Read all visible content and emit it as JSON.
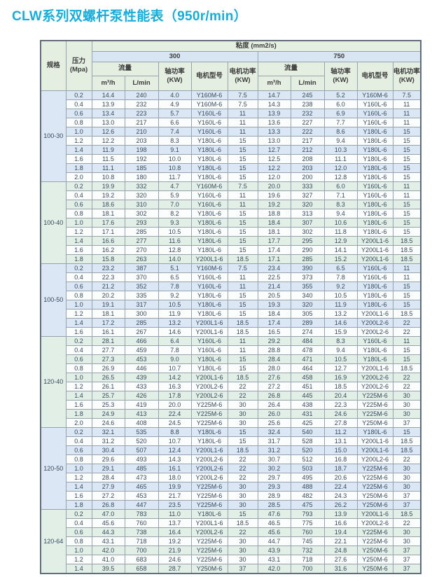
{
  "title": "CLW系列双螺杆泵性能表（950r/min）",
  "colors": {
    "title": "#18acd8",
    "header_green": "#e4eee1",
    "header_blue": "#d8e5f2",
    "row_tint_blue": "#dbe7f4",
    "row_tint_green": "#e2efe7",
    "row_plain": "#fbfdfc",
    "border_inner": "#96a3ac",
    "border_outer": "#5f6e79",
    "text": "#37495a"
  },
  "table": {
    "headers": {
      "spec": "规格",
      "pressure_line1": "压力",
      "pressure_line2": "(Mpa)",
      "viscosity": "粘度 (mm2/s)",
      "visc_300": "300",
      "visc_750": "750",
      "flow": "流量",
      "flow_m3h": "m³/h",
      "flow_lmin": "L/min",
      "shaft_power_line1": "轴功率",
      "shaft_power_line2": "(KW)",
      "motor_model": "电机型号",
      "motor_power_line1": "电机功率",
      "motor_power_line2": "(KW)"
    },
    "column_note": "row cells order: pressure, m3h_300, lmin_300, shaft_kw_300, motor_model_300, motor_kw_300, m3h_750, lmin_750, shaft_kw_750, motor_model_750, motor_kw_750",
    "groups": [
      {
        "spec": "100-30",
        "theme": "blue",
        "rows": [
          [
            "0.2",
            "14.4",
            "240",
            "4.0",
            "Y160M-6",
            "7.5",
            "14.7",
            "245",
            "5.2",
            "Y160M-6",
            "7.5"
          ],
          [
            "0.4",
            "13.9",
            "232",
            "4.9",
            "Y160M-6",
            "7.5",
            "14.3",
            "238",
            "6.0",
            "Y160L-6",
            "11"
          ],
          [
            "0.6",
            "13.4",
            "223",
            "5.7",
            "Y160L-6",
            "11",
            "13.9",
            "232",
            "6.9",
            "Y160L-6",
            "11"
          ],
          [
            "0.8",
            "13.0",
            "217",
            "6.6",
            "Y160L-6",
            "11",
            "13.6",
            "227",
            "7.7",
            "Y160L-6",
            "11"
          ],
          [
            "1.0",
            "12.6",
            "210",
            "7.4",
            "Y160L-6",
            "11",
            "13.3",
            "222",
            "8.6",
            "Y180L-6",
            "15"
          ],
          [
            "1.2",
            "12.2",
            "203",
            "8.3",
            "Y180L-6",
            "15",
            "13.0",
            "217",
            "9.4",
            "Y180L-6",
            "15"
          ],
          [
            "1.4",
            "11.9",
            "198",
            "9.1",
            "Y180L-6",
            "15",
            "12.7",
            "212",
            "10.3",
            "Y180L-6",
            "15"
          ],
          [
            "1.6",
            "11.5",
            "192",
            "10.0",
            "Y180L-6",
            "15",
            "12.5",
            "208",
            "11.1",
            "Y180L-6",
            "15"
          ],
          [
            "1.8",
            "11.1",
            "185",
            "10.8",
            "Y180L-6",
            "15",
            "12.2",
            "203",
            "12.0",
            "Y180L-6",
            "15"
          ],
          [
            "2.0",
            "10.8",
            "180",
            "11.7",
            "Y180L-6",
            "15",
            "12.0",
            "200",
            "12.8",
            "Y180L-6",
            "15"
          ]
        ]
      },
      {
        "spec": "100-40",
        "theme": "green",
        "rows": [
          [
            "0.2",
            "19.9",
            "332",
            "4.7",
            "Y160M-6",
            "7.5",
            "20.0",
            "333",
            "6.0",
            "Y160L-6",
            "11"
          ],
          [
            "0.4",
            "19.2",
            "320",
            "5.9",
            "Y160L-6",
            "11",
            "19.6",
            "327",
            "7.1",
            "Y160L-6",
            "11"
          ],
          [
            "0.6",
            "18.6",
            "310",
            "7.0",
            "Y160L-6",
            "11",
            "19.2",
            "320",
            "8.3",
            "Y180L-6",
            "15"
          ],
          [
            "0.8",
            "18.1",
            "302",
            "8.2",
            "Y180L-6",
            "15",
            "18.8",
            "313",
            "9.4",
            "Y180L-6",
            "15"
          ],
          [
            "1.0",
            "17.6",
            "293",
            "9.3",
            "Y180L-6",
            "15",
            "18.4",
            "307",
            "10.6",
            "Y180L-6",
            "15"
          ],
          [
            "1.2",
            "17.1",
            "285",
            "10.5",
            "Y180L-6",
            "15",
            "18.1",
            "302",
            "11.8",
            "Y180L-6",
            "15"
          ],
          [
            "1.4",
            "16.6",
            "277",
            "11.6",
            "Y180L-6",
            "15",
            "17.7",
            "295",
            "12.9",
            "Y200L1-6",
            "18.5"
          ],
          [
            "1.6",
            "16.2",
            "270",
            "12.8",
            "Y180L-6",
            "15",
            "17.4",
            "290",
            "14.1",
            "Y200L1-6",
            "18.5"
          ],
          [
            "1.8",
            "15.8",
            "263",
            "14.0",
            "Y200L1-6",
            "18.5",
            "17.1",
            "285",
            "15.2",
            "Y200L1-6",
            "18.5"
          ]
        ]
      },
      {
        "spec": "100-50",
        "theme": "blue",
        "rows": [
          [
            "0.2",
            "23.2",
            "387",
            "5.1",
            "Y160M-6",
            "7.5",
            "23.4",
            "390",
            "6.5",
            "Y160L-6",
            "11"
          ],
          [
            "0.4",
            "22.3",
            "370",
            "6.5",
            "Y160L-6",
            "11",
            "22.5",
            "373",
            "7.8",
            "Y160L-6",
            "11"
          ],
          [
            "0.6",
            "21.2",
            "352",
            "7.8",
            "Y160L-6",
            "11",
            "21.4",
            "355",
            "9.2",
            "Y180L-6",
            "15"
          ],
          [
            "0.8",
            "20.2",
            "335",
            "9.2",
            "Y180L-6",
            "15",
            "20.5",
            "340",
            "10.5",
            "Y180L-6",
            "15"
          ],
          [
            "1.0",
            "19.1",
            "317",
            "10.5",
            "Y180L-6",
            "15",
            "19.3",
            "320",
            "11.9",
            "Y180L-6",
            "15"
          ],
          [
            "1.2",
            "18.1",
            "300",
            "11.9",
            "Y180L-6",
            "15",
            "18.4",
            "305",
            "13.2",
            "Y200L1-6",
            "18.5"
          ],
          [
            "1.4",
            "17.2",
            "285",
            "13.2",
            "Y200L1-6",
            "18.5",
            "17.4",
            "289",
            "14.6",
            "Y200L2-6",
            "22"
          ],
          [
            "1.6",
            "16.1",
            "267",
            "14.6",
            "Y200L1-6",
            "18.5",
            "16.5",
            "274",
            "15.9",
            "Y200L2-6",
            "22"
          ]
        ]
      },
      {
        "spec": "120-40",
        "theme": "green",
        "rows": [
          [
            "0.2",
            "28.1",
            "466",
            "6.4",
            "Y160L-6",
            "11",
            "29.2",
            "484",
            "8.3",
            "Y160L-6",
            "11"
          ],
          [
            "0.4",
            "27.7",
            "459",
            "7.8",
            "Y160L-6",
            "11",
            "28.8",
            "478",
            "9.4",
            "Y180L-6",
            "15"
          ],
          [
            "0.6",
            "27.3",
            "453",
            "9.0",
            "Y180L-6",
            "15",
            "28.4",
            "471",
            "10.5",
            "Y180L-6",
            "15"
          ],
          [
            "0.8",
            "26.9",
            "446",
            "10.7",
            "Y180L-6",
            "15",
            "28.0",
            "464",
            "12.7",
            "Y200L1-6",
            "18.5"
          ],
          [
            "1.0",
            "26.5",
            "439",
            "14.2",
            "Y200L1-6",
            "18.5",
            "27.6",
            "458",
            "16.9",
            "Y200L2-6",
            "22"
          ],
          [
            "1.2",
            "26.1",
            "433",
            "16.3",
            "Y200L2-6",
            "22",
            "27.2",
            "451",
            "18.5",
            "Y200L2-6",
            "22"
          ],
          [
            "1.4",
            "25.7",
            "426",
            "17.8",
            "Y200L2-6",
            "22",
            "26.8",
            "445",
            "20.4",
            "Y225M-6",
            "30"
          ],
          [
            "1.6",
            "25.3",
            "419",
            "20.0",
            "Y225M-6",
            "30",
            "26.4",
            "438",
            "22.3",
            "Y225M-6",
            "30"
          ],
          [
            "1.8",
            "24.9",
            "413",
            "22.4",
            "Y225M-6",
            "30",
            "26.0",
            "431",
            "24.6",
            "Y225M-6",
            "30"
          ],
          [
            "2.0",
            "24.6",
            "408",
            "24.5",
            "Y225M-6",
            "30",
            "25.6",
            "425",
            "27.8",
            "Y250M-6",
            "37"
          ]
        ]
      },
      {
        "spec": "120-50",
        "theme": "blue",
        "rows": [
          [
            "0.2",
            "32.1",
            "535",
            "8.8",
            "Y180L-6",
            "15",
            "32.4",
            "540",
            "11.2",
            "Y180L-6",
            "15"
          ],
          [
            "0.4",
            "31.2",
            "520",
            "10.7",
            "Y180L-6",
            "15",
            "31.7",
            "528",
            "13.1",
            "Y200L1-6",
            "18.5"
          ],
          [
            "0.6",
            "30.4",
            "507",
            "12.4",
            "Y200L1-6",
            "18.5",
            "31.2",
            "520",
            "15.0",
            "Y200L1-6",
            "18.5"
          ],
          [
            "0.8",
            "29.6",
            "493",
            "14.3",
            "Y200L2-6",
            "22",
            "30.7",
            "512",
            "16.8",
            "Y200L2-6",
            "22"
          ],
          [
            "1.0",
            "29.1",
            "485",
            "16.1",
            "Y200L2-6",
            "22",
            "30.2",
            "503",
            "18.7",
            "Y225M-6",
            "30"
          ],
          [
            "1.2",
            "28.4",
            "473",
            "18.0",
            "Y200L2-6",
            "22",
            "29.7",
            "495",
            "20.6",
            "Y225M-6",
            "30"
          ],
          [
            "1.4",
            "27.9",
            "465",
            "19.9",
            "Y225M-6",
            "30",
            "29.3",
            "488",
            "22.4",
            "Y225M-6",
            "30"
          ],
          [
            "1.6",
            "27.2",
            "453",
            "21.7",
            "Y225M-6",
            "30",
            "28.9",
            "482",
            "24.3",
            "Y250M-6",
            "37"
          ],
          [
            "1.8",
            "26.8",
            "447",
            "23.5",
            "Y225M-6",
            "30",
            "28.5",
            "475",
            "26.2",
            "Y250M-6",
            "37"
          ]
        ]
      },
      {
        "spec": "120-64",
        "theme": "green",
        "rows": [
          [
            "0.2",
            "47.0",
            "783",
            "11.0",
            "Y180L-6",
            "15",
            "47.6",
            "793",
            "13.9",
            "Y200L1-6",
            "18.5"
          ],
          [
            "0.4",
            "45.6",
            "760",
            "13.7",
            "Y200L1-6",
            "18.5",
            "46.5",
            "775",
            "16.6",
            "Y200L2-6",
            "22"
          ],
          [
            "0.6",
            "44.3",
            "738",
            "16.4",
            "Y200L2-6",
            "22",
            "45.6",
            "760",
            "19.4",
            "Y225M-6",
            "30"
          ],
          [
            "0.8",
            "43.1",
            "718",
            "19.2",
            "Y225M-6",
            "30",
            "44.7",
            "745",
            "22.1",
            "Y225M-6",
            "30"
          ],
          [
            "1.0",
            "42.0",
            "700",
            "21.9",
            "Y225M-6",
            "30",
            "43.9",
            "732",
            "24.8",
            "Y250M-6",
            "37"
          ],
          [
            "1.2",
            "41.0",
            "683",
            "24.6",
            "Y225M-6",
            "30",
            "43.1",
            "718",
            "27.6",
            "Y250M-6",
            "37"
          ],
          [
            "1.4",
            "39.5",
            "658",
            "28.7",
            "Y250M-6",
            "37",
            "42.0",
            "700",
            "31.6",
            "Y250M-6",
            "37"
          ]
        ]
      }
    ]
  }
}
